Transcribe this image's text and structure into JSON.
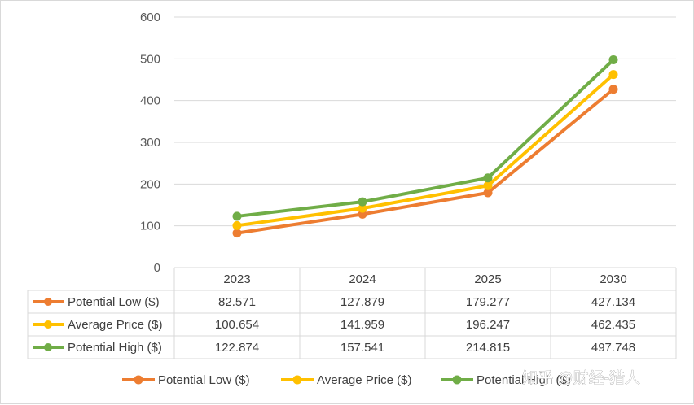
{
  "chart_data": {
    "type": "line",
    "title": "",
    "xlabel": "",
    "ylabel": "",
    "ylim": [
      0,
      600
    ],
    "y_ticks": [
      "0",
      "100",
      "200",
      "300",
      "400",
      "500",
      "600"
    ],
    "categories": [
      "2023",
      "2024",
      "2025",
      "2030"
    ],
    "grid": true,
    "legend_position": "bottom",
    "has_data_table": true,
    "series": [
      {
        "name": "Potential Low ($)",
        "color": "#ED7D31",
        "values": [
          82.571,
          127.879,
          179.277,
          427.134
        ],
        "labels": [
          "82.571",
          "127.879",
          "179.277",
          "427.134"
        ]
      },
      {
        "name": "Average Price ($)",
        "color": "#FFC000",
        "values": [
          100.654,
          141.959,
          196.247,
          462.435
        ],
        "labels": [
          "100.654",
          "141.959",
          "196.247",
          "462.435"
        ]
      },
      {
        "name": "Potential High ($)",
        "color": "#70AD47",
        "values": [
          122.874,
          157.541,
          214.815,
          497.748
        ],
        "labels": [
          "122.874",
          "157.541",
          "214.815",
          "497.748"
        ]
      }
    ]
  },
  "watermark": {
    "text": "知乎 @财经-猎人"
  }
}
